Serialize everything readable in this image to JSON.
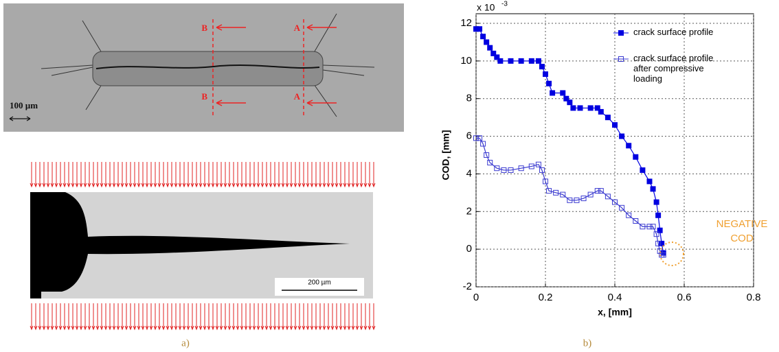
{
  "chart_data": {
    "type": "line",
    "y_multiplier": "x 10",
    "y_multiplier_exp": "-3",
    "xlabel": "x, [mm]",
    "ylabel": "COD, [mm]",
    "xlim": [
      0,
      0.8
    ],
    "xticks": [
      0,
      0.2,
      0.4,
      0.6,
      0.8
    ],
    "ylim": [
      -2,
      12
    ],
    "yticks": [
      -2,
      0,
      2,
      4,
      6,
      8,
      10,
      12
    ],
    "grid": true,
    "legend": "upper right",
    "annotation": "NEGATIVE COD",
    "series": [
      {
        "name": "crack surface profile",
        "color": "#0000e0",
        "marker": "filled-square",
        "x": [
          0,
          0.01,
          0.02,
          0.03,
          0.04,
          0.05,
          0.06,
          0.07,
          0.1,
          0.13,
          0.16,
          0.18,
          0.19,
          0.2,
          0.21,
          0.22,
          0.25,
          0.26,
          0.27,
          0.28,
          0.3,
          0.33,
          0.35,
          0.36,
          0.38,
          0.4,
          0.42,
          0.44,
          0.46,
          0.48,
          0.5,
          0.51,
          0.52,
          0.525,
          0.53,
          0.535,
          0.54
        ],
        "values": [
          11.7,
          11.7,
          11.3,
          11,
          10.7,
          10.4,
          10.2,
          10,
          10,
          10,
          10,
          10,
          9.7,
          9.3,
          8.8,
          8.3,
          8.3,
          8,
          7.8,
          7.5,
          7.5,
          7.5,
          7.5,
          7.3,
          7,
          6.6,
          6,
          5.5,
          4.9,
          4.2,
          3.6,
          3.2,
          2.5,
          1.8,
          1.0,
          0.3,
          -0.2
        ]
      },
      {
        "name": "crack surface profile after compressive loading",
        "color": "#3a3ad0",
        "marker": "open-square",
        "x": [
          0,
          0.01,
          0.02,
          0.03,
          0.04,
          0.06,
          0.08,
          0.1,
          0.13,
          0.16,
          0.18,
          0.19,
          0.2,
          0.21,
          0.23,
          0.25,
          0.27,
          0.29,
          0.31,
          0.33,
          0.35,
          0.36,
          0.38,
          0.4,
          0.42,
          0.44,
          0.46,
          0.48,
          0.5,
          0.51,
          0.52,
          0.525,
          0.53,
          0.535,
          0.54
        ],
        "values": [
          5.9,
          5.9,
          5.6,
          5.0,
          4.6,
          4.3,
          4.2,
          4.2,
          4.3,
          4.4,
          4.5,
          4.2,
          3.6,
          3.1,
          3.0,
          2.9,
          2.6,
          2.6,
          2.7,
          2.9,
          3.1,
          3.1,
          2.8,
          2.5,
          2.2,
          1.8,
          1.5,
          1.2,
          1.2,
          1.2,
          0.8,
          0.3,
          -0.1,
          -0.3,
          -0.3
        ]
      }
    ]
  },
  "micrograph": {
    "section_labels": [
      "B",
      "A",
      "B",
      "A"
    ],
    "scale_top": "100 µm",
    "scale_bottom": "200 µm"
  },
  "captions": [
    "a)",
    "b)"
  ]
}
